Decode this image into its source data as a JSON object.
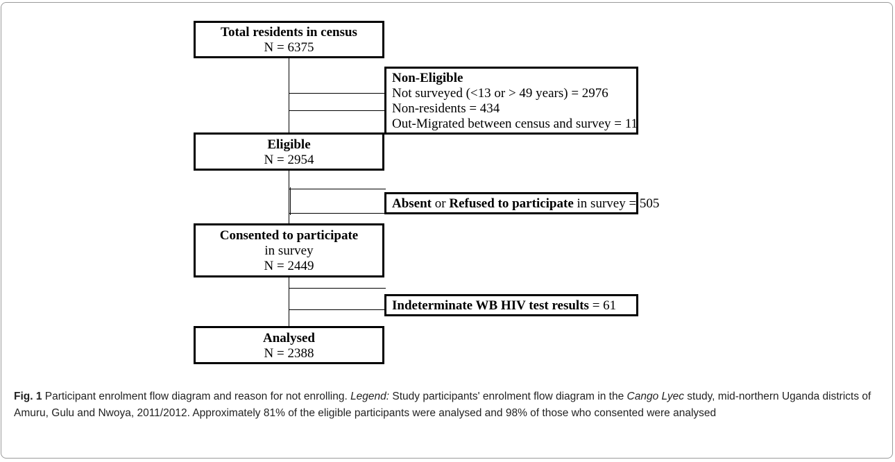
{
  "boxes": {
    "total": {
      "title": "Total residents in census",
      "count": "N = 6375"
    },
    "non_eligible": {
      "title": "Non-Eligible",
      "lines": [
        "Not surveyed (<13 or > 49 years) = 2976",
        "Non-residents = 434",
        "Out-Migrated between census and survey = 11"
      ]
    },
    "eligible": {
      "title": "Eligible",
      "count": "N = 2954"
    },
    "absent": {
      "bold1": "Absent",
      "text1": " or ",
      "bold2": "Refused to participate",
      "text2": " in survey = 505"
    },
    "consented": {
      "title": "Consented to participate",
      "line2": "in survey",
      "count": "N = 2449"
    },
    "indeterminate": {
      "bold": "Indeterminate WB HIV test results",
      "text": " = 61"
    },
    "analysed": {
      "title": "Analysed",
      "count": "N = 2388"
    }
  },
  "caption": {
    "fig_label": "Fig. 1",
    "title": " Participant enrolment flow diagram and reason for not enrolling. ",
    "legend_label": "Legend:",
    "text1": " Study participants' enrolment flow diagram in the ",
    "study_name": "Cango Lyec",
    "text2": " study, mid-northern Uganda districts of Amuru, Gulu and Nwoya, 2011/2012. Approximately 81% of the eligible participants were analysed and 98% of those who consented were analysed"
  }
}
